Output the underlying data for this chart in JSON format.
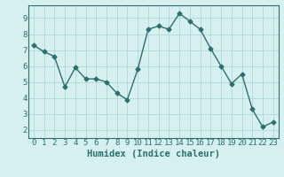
{
  "x": [
    0,
    1,
    2,
    3,
    4,
    5,
    6,
    7,
    8,
    9,
    10,
    11,
    12,
    13,
    14,
    15,
    16,
    17,
    18,
    19,
    20,
    21,
    22,
    23
  ],
  "y": [
    7.3,
    6.9,
    6.6,
    4.7,
    5.9,
    5.2,
    5.2,
    5.0,
    4.3,
    3.9,
    5.8,
    8.3,
    8.5,
    8.3,
    9.3,
    8.8,
    8.3,
    7.1,
    6.0,
    4.9,
    5.5,
    3.3,
    2.2,
    2.5
  ],
  "xlabel": "Humidex (Indice chaleur)",
  "xlim": [
    -0.5,
    23.5
  ],
  "ylim": [
    1.5,
    9.8
  ],
  "yticks": [
    2,
    3,
    4,
    5,
    6,
    7,
    8,
    9
  ],
  "xticks": [
    0,
    1,
    2,
    3,
    4,
    5,
    6,
    7,
    8,
    9,
    10,
    11,
    12,
    13,
    14,
    15,
    16,
    17,
    18,
    19,
    20,
    21,
    22,
    23
  ],
  "xtick_labels": [
    "0",
    "1",
    "2",
    "3",
    "4",
    "5",
    "6",
    "7",
    "8",
    "9",
    "10",
    "11",
    "12",
    "13",
    "14",
    "15",
    "16",
    "17",
    "18",
    "19",
    "20",
    "21",
    "22",
    "23"
  ],
  "line_color": "#2d6e6e",
  "marker": "D",
  "marker_size": 2.5,
  "bg_color": "#d6f0f0",
  "grid_color": "#b0d8d8",
  "xlabel_fontsize": 7.5,
  "tick_fontsize": 6.5,
  "linewidth": 1.0
}
